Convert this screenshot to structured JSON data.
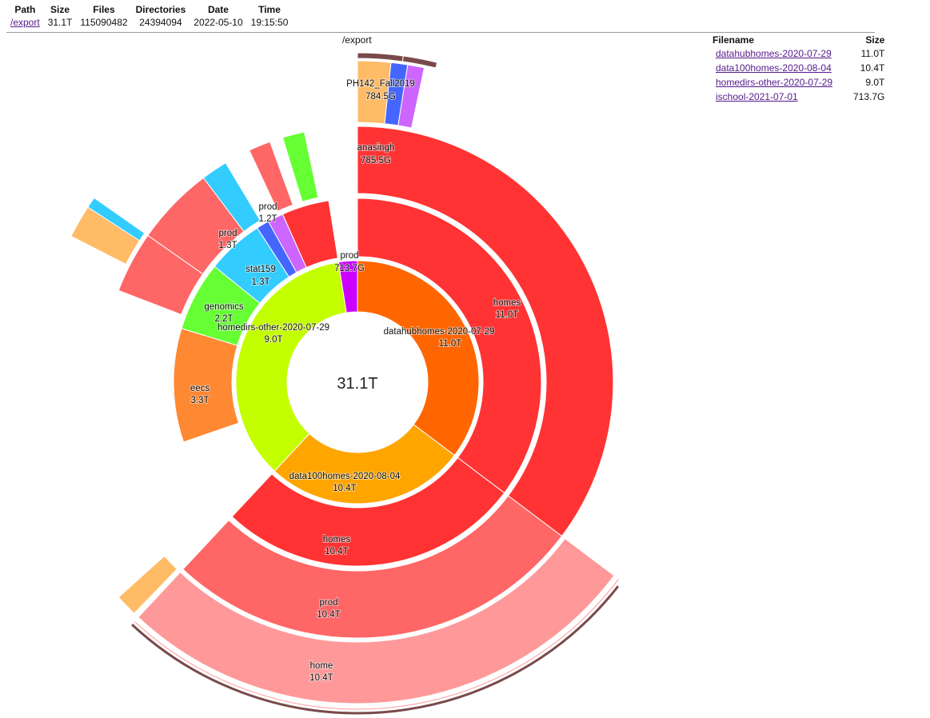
{
  "summary": {
    "headers": [
      "Path",
      "Size",
      "Files",
      "Directories",
      "Date",
      "Time"
    ],
    "path": "/export",
    "size": "31.1T",
    "files": "115090482",
    "directories": "24394094",
    "date": "2022-05-10",
    "time": "19:15:50"
  },
  "breadcrumb": "/export",
  "file_list": {
    "headers": {
      "name": "Filename",
      "size": "Size"
    },
    "rows": [
      {
        "name": "datahubhomes-2020-07-29",
        "size": "11.0T"
      },
      {
        "name": "data100homes-2020-08-04",
        "size": "10.4T"
      },
      {
        "name": "homedirs-other-2020-07-29",
        "size": "9.0T"
      },
      {
        "name": "ischool-2021-07-01",
        "size": "713.7G"
      }
    ]
  },
  "center_total": "31.1T",
  "segment_labels": [
    {
      "name": "datahubhomes-2020-07-29",
      "size": "11.0T"
    },
    {
      "name": "data100homes-2020-08-04",
      "size": "10.4T"
    },
    {
      "name": "homedirs-other-2020-07-29",
      "size": "9.0T"
    },
    {
      "name": "homes",
      "size": "11.0T"
    },
    {
      "name": "homes",
      "size": "10.4T"
    },
    {
      "name": "prod",
      "size": "10.4T"
    },
    {
      "name": "home",
      "size": "10.4T"
    },
    {
      "name": "eecs",
      "size": "3.3T"
    },
    {
      "name": "genomics",
      "size": "2.2T"
    },
    {
      "name": "stat159",
      "size": "1.3T"
    },
    {
      "name": "prod",
      "size": "1.3T"
    },
    {
      "name": "prod",
      "size": "1.2T"
    },
    {
      "name": "prod",
      "size": "713.7G"
    },
    {
      "name": "anasingh",
      "size": "785.5G"
    },
    {
      "name": "PH142_Fall2019",
      "size": "784.5G"
    }
  ],
  "colors": {
    "datahub": "#ff6600",
    "data100": "#ffa500",
    "homedirs": "#c4ff00",
    "ischool": "#cc00ff",
    "red": "#ff3333",
    "salmon": "#ff6666",
    "pink": "#ff9999",
    "orange2": "#ff8833",
    "green": "#66ff33",
    "cyan": "#33ccff",
    "peach": "#ffbb66",
    "brown": "#7a4a4a",
    "blue": "#4466ff",
    "violet": "#cc66ff"
  }
}
